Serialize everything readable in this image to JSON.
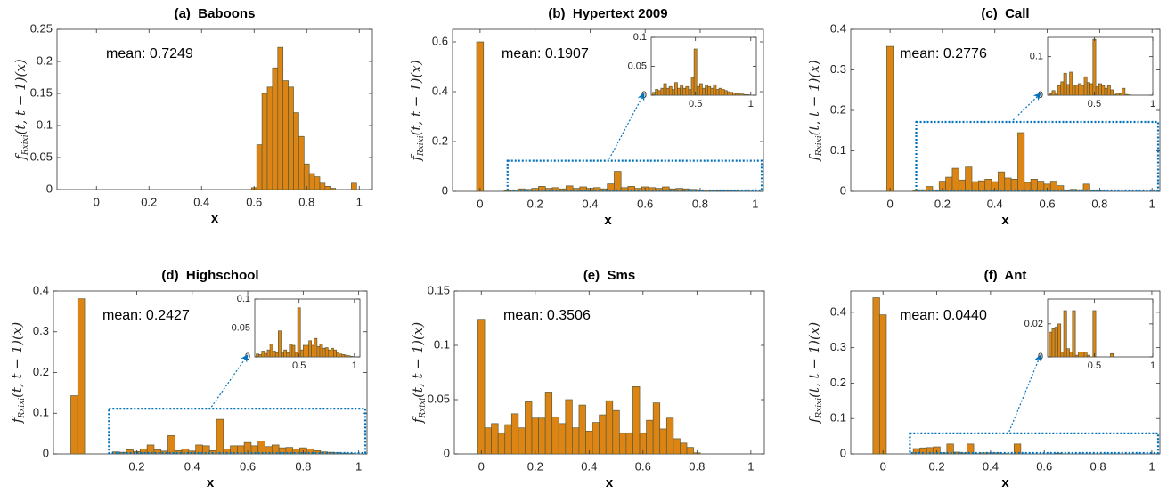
{
  "chart_data": [
    {
      "type": "histogram",
      "title": "(a)  Baboons",
      "xlabel": "x",
      "ylabel": [
        "f",
        "Rxixi",
        "(t, t − 1)(x)"
      ],
      "annotation": "mean: 0.7249",
      "color": "#dd8514",
      "bins": [
        0.59,
        0.61,
        0.63,
        0.65,
        0.67,
        0.69,
        0.71,
        0.73,
        0.75,
        0.77,
        0.79,
        0.81,
        0.83,
        0.85,
        0.87,
        0.89,
        0.91,
        0.93,
        0.95,
        0.97,
        0.99
      ],
      "values": [
        0.003,
        0.07,
        0.15,
        0.16,
        0.19,
        0.222,
        0.17,
        0.16,
        0.12,
        0.083,
        0.04,
        0.025,
        0.02,
        0.01,
        0.005,
        0.002,
        0,
        0,
        0,
        0.01
      ],
      "xlim": [
        -0.15,
        1.05
      ],
      "xticks": [
        0,
        0.2,
        0.4,
        0.6,
        0.8,
        1
      ],
      "ylim": [
        0,
        0.25
      ],
      "yticks": [
        0,
        0.05,
        0.1,
        0.15,
        0.2,
        0.25
      ]
    },
    {
      "type": "histogram",
      "title": "(b)  Hypertext 2009",
      "xlabel": "x",
      "ylabel": [
        "f",
        "Rxixi",
        "(t, t − 1)(x)"
      ],
      "annotation": "mean: 0.1907",
      "color": "#dd8514",
      "bins": [
        -0.0375,
        -0.0125,
        0.0125,
        0.0375,
        0.0625,
        0.0875,
        0.1125,
        0.1375,
        0.1625,
        0.1875,
        0.2125,
        0.2375,
        0.2625,
        0.2875,
        0.3125,
        0.3375,
        0.3625,
        0.3875,
        0.4125,
        0.4375,
        0.4625,
        0.4875,
        0.5125,
        0.5375,
        0.5625,
        0.5875,
        0.6125,
        0.6375,
        0.6625,
        0.6875,
        0.7125,
        0.7375,
        0.7625,
        0.7875,
        0.8125,
        0.8375,
        0.8625,
        0.8875,
        0.9125,
        0.9375,
        0.9625,
        0.9875,
        1.0125
      ],
      "values": [
        0,
        0.6,
        0,
        0,
        0,
        0.003,
        0.005,
        0.01,
        0.008,
        0.012,
        0.02,
        0.012,
        0.015,
        0.01,
        0.022,
        0.012,
        0.018,
        0.012,
        0.015,
        0.01,
        0.03,
        0.08,
        0.015,
        0.02,
        0.012,
        0.018,
        0.015,
        0.012,
        0.018,
        0.01,
        0.012,
        0.01,
        0.008,
        0.006,
        0.005,
        0.004,
        0.003,
        0.002,
        0.002,
        0.001,
        0.001,
        0
      ],
      "xlim": [
        -0.1,
        1.03
      ],
      "xticks": [
        0,
        0.2,
        0.4,
        0.6,
        0.8,
        1
      ],
      "ylim": [
        0,
        0.65
      ],
      "yticks": [
        0,
        0.2,
        0.4,
        0.6
      ],
      "inset": {
        "xlim": [
          0.1,
          1.05
        ],
        "xticks": [
          0.5,
          1
        ],
        "ylim": [
          0,
          0.1
        ],
        "yticks": [
          0,
          0.05,
          0.1
        ]
      }
    },
    {
      "type": "histogram",
      "title": "(c)  Call",
      "xlabel": "x",
      "ylabel": [
        "f",
        "Rxixi",
        "(t, t − 1)(x)"
      ],
      "annotation": "mean: 0.2776",
      "color": "#dd8514",
      "bins": [
        -0.0375,
        -0.0125,
        0.0125,
        0.0375,
        0.0625,
        0.0875,
        0.1125,
        0.1375,
        0.1625,
        0.1875,
        0.2125,
        0.2375,
        0.2625,
        0.2875,
        0.3125,
        0.3375,
        0.3625,
        0.3875,
        0.4125,
        0.4375,
        0.4625,
        0.4875,
        0.5125,
        0.5375,
        0.5625,
        0.5875,
        0.6125,
        0.6375,
        0.6625,
        0.6875,
        0.7125,
        0.7375,
        0.7625,
        0.7875,
        0.8125,
        0.8375,
        0.8625,
        0.8875,
        0.9125,
        0.9375,
        0.9625,
        0.9875,
        1.0125
      ],
      "values": [
        0,
        0.358,
        0,
        0,
        0,
        0.002,
        0.004,
        0.012,
        0.003,
        0.025,
        0.035,
        0.057,
        0.028,
        0.06,
        0.024,
        0.026,
        0.03,
        0.024,
        0.048,
        0.033,
        0.03,
        0.145,
        0.022,
        0.03,
        0.025,
        0.018,
        0.025,
        0.014,
        0.002,
        0.005,
        0.004,
        0.018,
        0.002,
        0.001,
        0,
        0,
        0,
        0,
        0,
        0,
        0,
        0
      ],
      "xlim": [
        -0.15,
        1.03
      ],
      "xticks": [
        0,
        0.2,
        0.4,
        0.6,
        0.8,
        1
      ],
      "ylim": [
        0,
        0.4
      ],
      "yticks": [
        0,
        0.1,
        0.2,
        0.3,
        0.4
      ],
      "inset": {
        "xlim": [
          0.1,
          1.0
        ],
        "xticks": [
          0.5,
          1
        ],
        "ylim": [
          0,
          0.15
        ],
        "yticks": [
          0,
          0.1
        ]
      }
    },
    {
      "type": "histogram",
      "title": "(d)  Highschool",
      "xlabel": "x",
      "ylabel": [
        "f",
        "Rxixi",
        "(t, t − 1)(x)"
      ],
      "annotation": "mean: 0.2427",
      "color": "#dd8514",
      "bins": [
        -0.0375,
        -0.0125,
        0.0125,
        0.0375,
        0.0625,
        0.0875,
        0.1125,
        0.1375,
        0.1625,
        0.1875,
        0.2125,
        0.2375,
        0.2625,
        0.2875,
        0.3125,
        0.3375,
        0.3625,
        0.3875,
        0.4125,
        0.4375,
        0.4625,
        0.4875,
        0.5125,
        0.5375,
        0.5625,
        0.5875,
        0.6125,
        0.6375,
        0.6625,
        0.6875,
        0.7125,
        0.7375,
        0.7625,
        0.7875,
        0.8125,
        0.8375,
        0.8625,
        0.8875,
        0.9125,
        0.9375,
        0.9625,
        0.9875,
        1.0125
      ],
      "values": [
        0.143,
        0.381,
        0,
        0,
        0,
        0,
        0.005,
        0.004,
        0.01,
        0.006,
        0.012,
        0.022,
        0.01,
        0.007,
        0.045,
        0.008,
        0.012,
        0.007,
        0.022,
        0.02,
        0.008,
        0.085,
        0.012,
        0.02,
        0.02,
        0.028,
        0.02,
        0.032,
        0.018,
        0.022,
        0.015,
        0.016,
        0.012,
        0.015,
        0.012,
        0.008,
        0.005,
        0.004,
        0.003,
        0.002,
        0.001,
        0
      ],
      "xlim": [
        -0.1,
        1.03
      ],
      "xticks": [
        0.2,
        0.4,
        0.6,
        0.8,
        1
      ],
      "ylim": [
        0,
        0.4
      ],
      "yticks": [
        0,
        0.1,
        0.2,
        0.3,
        0.4
      ],
      "inset": {
        "xlim": [
          0.1,
          1.05
        ],
        "xticks": [
          0.5,
          1
        ],
        "ylim": [
          0,
          0.1
        ],
        "yticks": [
          0,
          0.05,
          0.1
        ]
      }
    },
    {
      "type": "histogram",
      "title": "(e)  Sms",
      "xlabel": "x",
      "ylabel": [
        "f",
        "Rxixi",
        "(t, t − 1)(x)"
      ],
      "annotation": "mean: 0.3506",
      "color": "#dd8514",
      "bins": [
        -0.0375,
        -0.0125,
        0.0125,
        0.0375,
        0.0625,
        0.0875,
        0.1125,
        0.1375,
        0.1625,
        0.1875,
        0.2125,
        0.2375,
        0.2625,
        0.2875,
        0.3125,
        0.3375,
        0.3625,
        0.3875,
        0.4125,
        0.4375,
        0.4625,
        0.4875,
        0.5125,
        0.5375,
        0.5625,
        0.5875,
        0.6125,
        0.6375,
        0.6625,
        0.6875,
        0.7125,
        0.7375,
        0.7625,
        0.7875,
        0.8125,
        0.8375,
        0.8625,
        0.8875,
        0.9125,
        0.9375,
        0.9625,
        0.9875,
        1.0125
      ],
      "values": [
        0,
        0.124,
        0.024,
        0.028,
        0.019,
        0.027,
        0.037,
        0.024,
        0.048,
        0.033,
        0.033,
        0.057,
        0.034,
        0.028,
        0.05,
        0.024,
        0.045,
        0.021,
        0.029,
        0.036,
        0.049,
        0.04,
        0.019,
        0.019,
        0.062,
        0.019,
        0.031,
        0.047,
        0.023,
        0.033,
        0.014,
        0.01,
        0.006,
        0.001,
        0,
        0,
        0,
        0,
        0,
        0,
        0,
        0
      ],
      "xlim": [
        -0.1,
        1.05
      ],
      "xticks": [
        0,
        0.2,
        0.4,
        0.6,
        0.8,
        1
      ],
      "ylim": [
        0,
        0.15
      ],
      "yticks": [
        0,
        0.05,
        0.1,
        0.15
      ]
    },
    {
      "type": "histogram",
      "title": "(f)  Ant",
      "xlabel": "x",
      "ylabel": [
        "f",
        "Rxixi",
        "(t, t − 1)(x)"
      ],
      "annotation": "mean: 0.0440",
      "color": "#dd8514",
      "bins": [
        -0.0375,
        -0.0125,
        0.0125,
        0.0375,
        0.0625,
        0.0875,
        0.1125,
        0.1375,
        0.1625,
        0.1875,
        0.2125,
        0.2375,
        0.2625,
        0.2875,
        0.3125,
        0.3375,
        0.3625,
        0.3875,
        0.4125,
        0.4375,
        0.4625,
        0.4875,
        0.5125,
        0.5375,
        0.5625,
        0.5875,
        0.6125,
        0.6375,
        0.6625,
        0.6875,
        0.7125,
        0.7375,
        0.7625,
        0.7875,
        0.8125,
        0.8375,
        0.8625,
        0.8875,
        0.9125,
        0.9375,
        0.9625,
        0.9875,
        1.0125
      ],
      "values": [
        0.441,
        0.393,
        0,
        0,
        0,
        0,
        0.015,
        0.017,
        0.018,
        0.02,
        0.003,
        0.028,
        0.005,
        0.003,
        0.028,
        0.001,
        0.003,
        0.003,
        0.003,
        0.001,
        0,
        0.028,
        0,
        0,
        0,
        0,
        0,
        0.002,
        0,
        0,
        0,
        0,
        0,
        0,
        0,
        0,
        0,
        0,
        0,
        0,
        0,
        0
      ],
      "xlim": [
        -0.12,
        1.03
      ],
      "xticks": [
        0,
        0.2,
        0.4,
        0.6,
        0.8,
        1
      ],
      "ylim": [
        0,
        0.46
      ],
      "yticks": [
        0,
        0.1,
        0.2,
        0.3,
        0.4
      ],
      "inset": {
        "xlim": [
          0.1,
          1.0
        ],
        "xticks": [
          0.5,
          1
        ],
        "ylim": [
          0,
          0.035
        ],
        "yticks": [
          0,
          0.02
        ]
      }
    }
  ]
}
